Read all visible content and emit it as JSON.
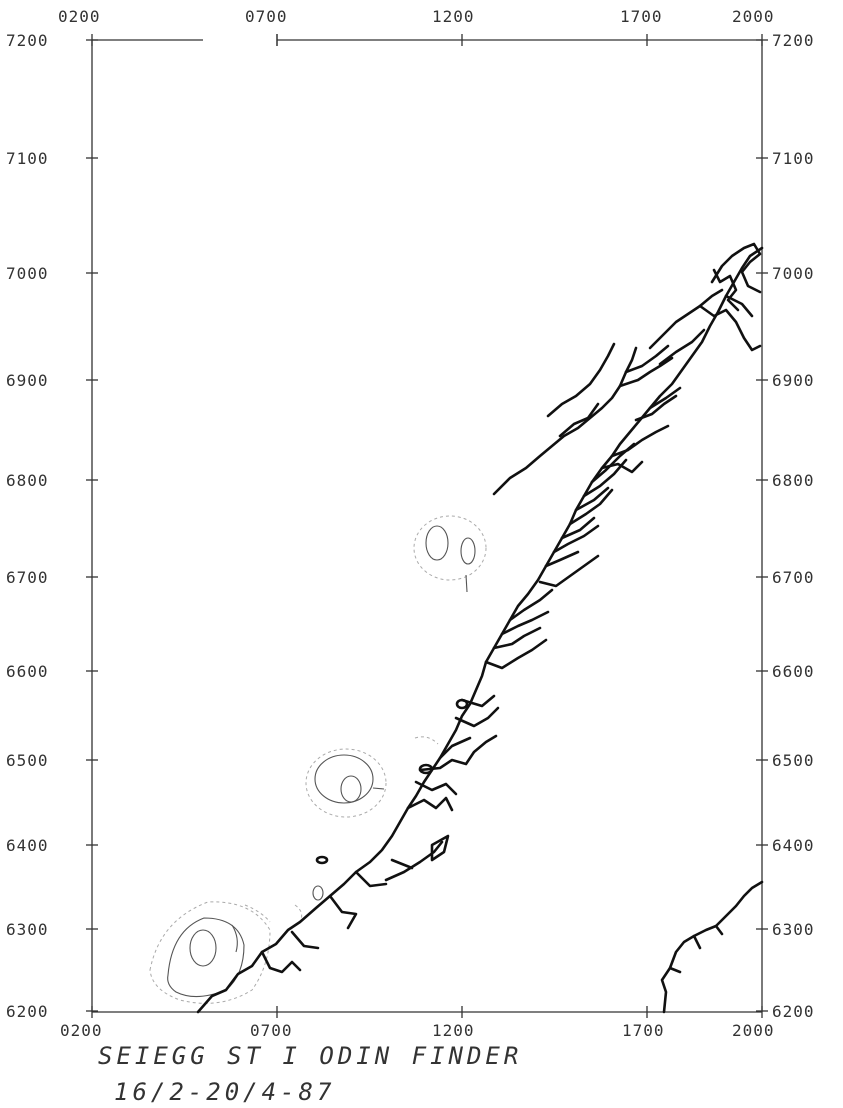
{
  "x_axis": {
    "top_labels": [
      "0200",
      "0700",
      "1200",
      "1700",
      "2000"
    ],
    "bottom_labels": [
      "0200",
      "0700",
      "1200",
      "1700",
      "2000"
    ]
  },
  "y_axis": {
    "labels": [
      "7200",
      "7100",
      "7000",
      "6900",
      "6800",
      "6700",
      "6600",
      "6500",
      "6400",
      "6300",
      "6200"
    ]
  },
  "caption": {
    "line1": "SEIEGG ST I ODIN FINDER",
    "line2": "16/2-20/4-87"
  },
  "colors": {
    "ink": "#111111",
    "contour": "#555555",
    "paper": "#ffffff"
  }
}
